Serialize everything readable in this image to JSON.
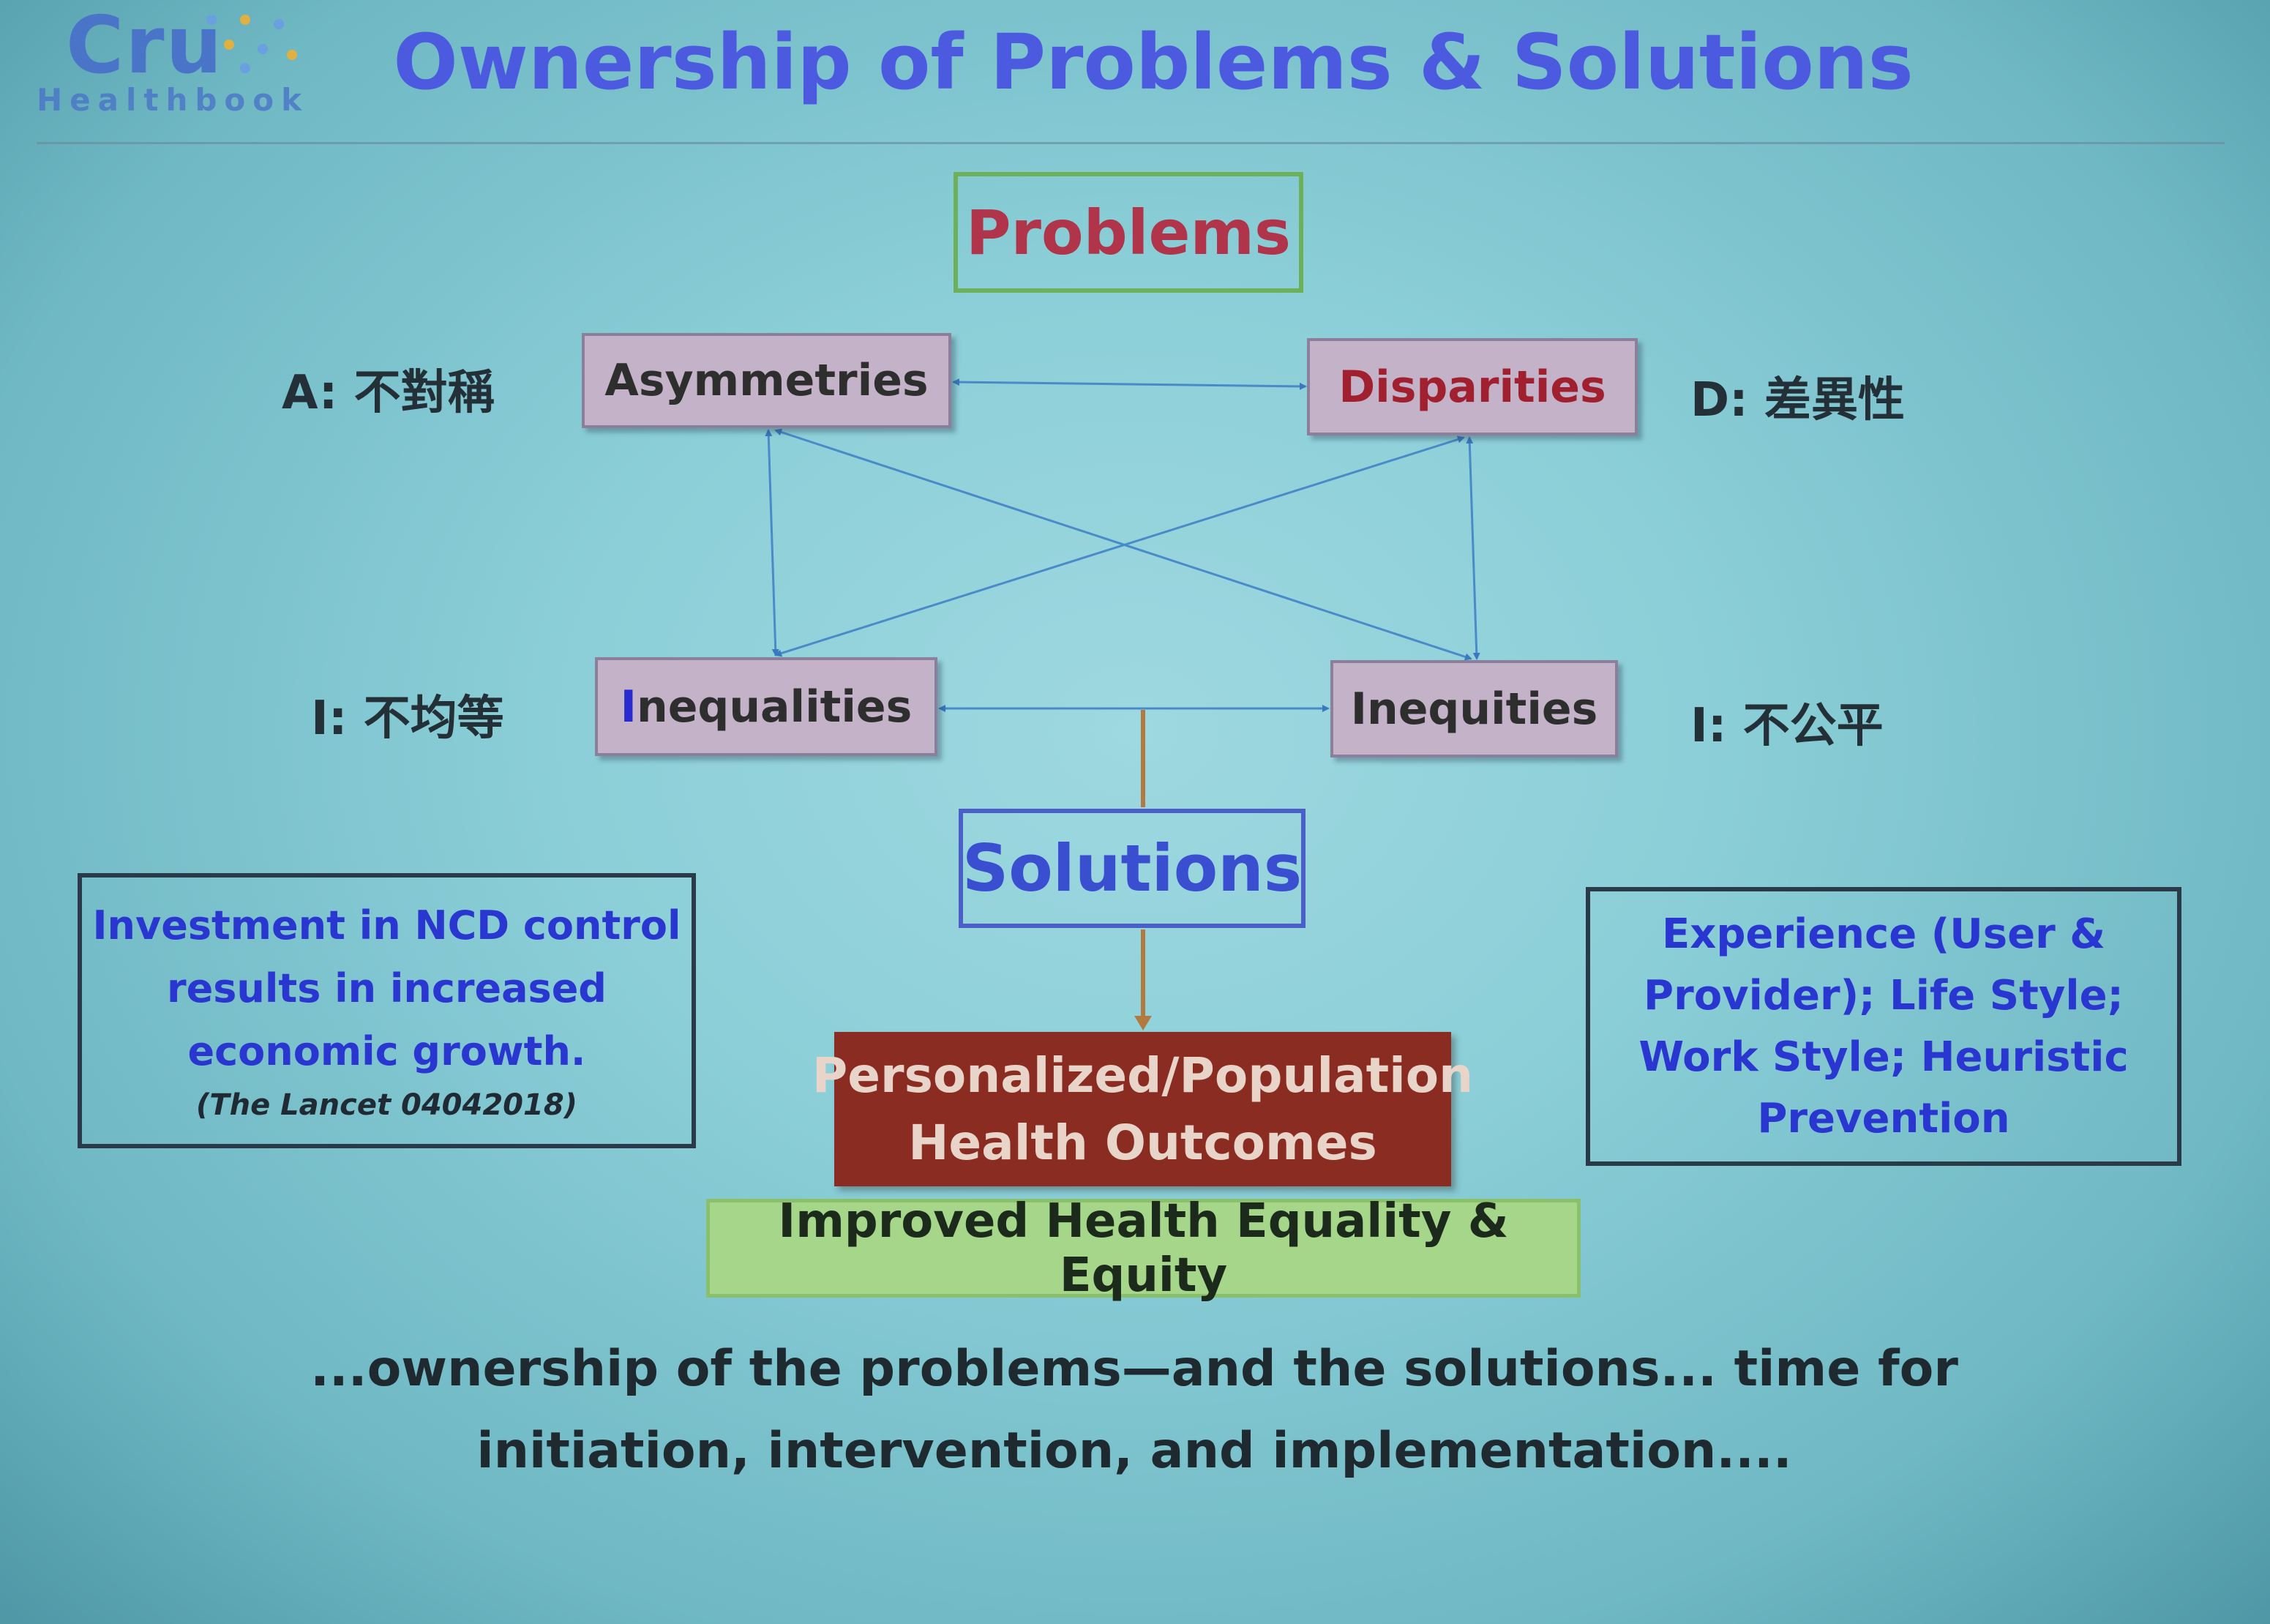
{
  "logo": {
    "name": "Cru",
    "sub": "Healthbook"
  },
  "title": "Ownership of Problems & Solutions",
  "problems_label": "Problems",
  "nodes": {
    "asymmetries": {
      "first": "A",
      "rest": "symmetries",
      "chinese": "A: 不對稱"
    },
    "disparities": {
      "first": "D",
      "rest": "isparities",
      "chinese": "D: 差異性"
    },
    "inequalities": {
      "first": "I",
      "rest": "nequalities",
      "chinese": "I: 不均等"
    },
    "inequities": {
      "first": "I",
      "rest": "nequities",
      "chinese": "I: 不公平"
    }
  },
  "solutions_label": "Solutions",
  "left_box": {
    "line1": "Investment in NCD control",
    "line2": "results in increased",
    "line3": "economic growth.",
    "citation": "(The Lancet 04042018)"
  },
  "right_box": "Experience (User & Provider); Life Style; Work Style; Heuristic Prevention",
  "outcomes": {
    "line1": "Personalized/Population",
    "line2": "Health Outcomes"
  },
  "improved": "Improved Health Equality & Equity",
  "closing": {
    "line1": "...ownership of the problems—and the solutions... time for",
    "line2": "initiation, intervention, and implementation...."
  },
  "colors": {
    "title": "#4c5ae0",
    "problems": "#b0344a",
    "outcomes_bg": "#8a2c22",
    "improved_bg": "#a6d68a",
    "connector": "#4a8ac8",
    "stem": "#b07a40"
  }
}
